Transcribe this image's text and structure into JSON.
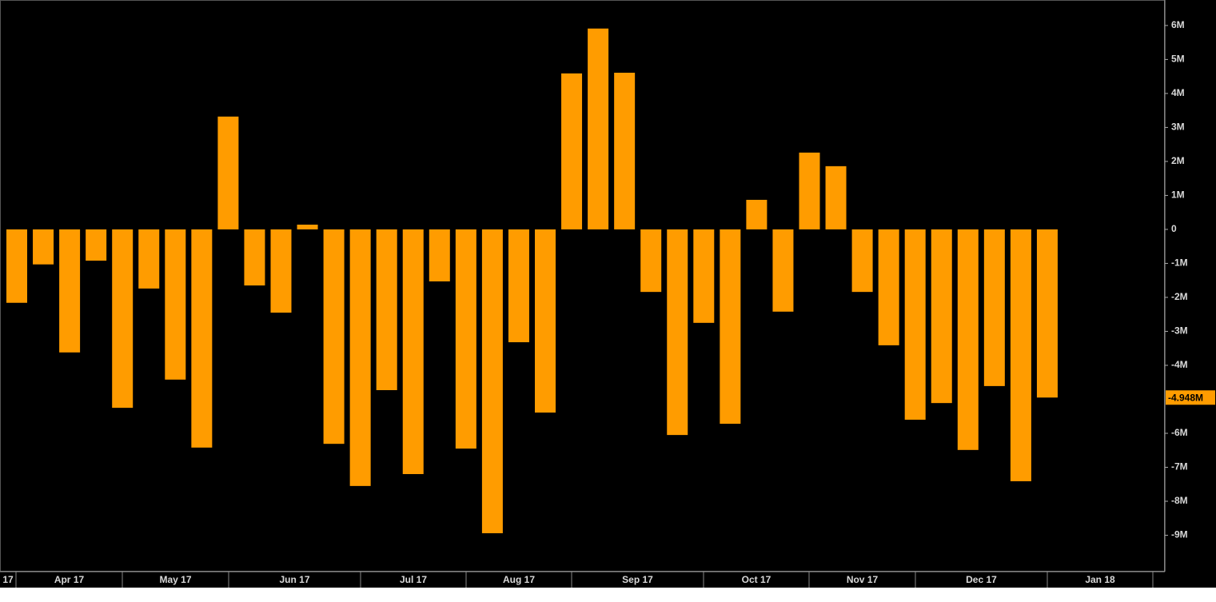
{
  "chart_data": {
    "type": "bar",
    "categories": [
      null,
      null,
      null,
      null,
      null,
      null,
      null,
      null,
      null,
      null,
      null,
      null,
      null,
      null,
      null,
      null,
      null,
      null,
      null,
      null,
      null,
      null,
      null,
      null,
      null,
      null,
      null,
      null,
      null,
      null,
      null,
      null,
      null,
      null,
      null,
      null,
      null,
      null,
      null,
      null
    ],
    "values": [
      -2.16,
      -1.03,
      -3.62,
      -0.92,
      -5.25,
      -1.74,
      -4.42,
      -6.42,
      3.32,
      -1.65,
      -2.45,
      0.14,
      -6.31,
      -7.55,
      -4.73,
      -7.2,
      -1.53,
      -6.45,
      -8.94,
      -3.32,
      -5.39,
      4.59,
      5.91,
      4.61,
      -1.84,
      -6.05,
      -2.75,
      -5.72,
      0.87,
      -2.42,
      2.26,
      1.86,
      -1.84,
      -3.41,
      -5.6,
      -5.11,
      -6.49,
      -4.61,
      -7.41,
      -4.948
    ],
    "last_value_label": "-4.948M",
    "color": "#ff9c00",
    "ylim": [
      -10.07,
      6.75
    ],
    "yticks": [
      {
        "value": 6,
        "label": "6M"
      },
      {
        "value": 5,
        "label": "5M"
      },
      {
        "value": 4,
        "label": "4M"
      },
      {
        "value": 3,
        "label": "3M"
      },
      {
        "value": 2,
        "label": "2M"
      },
      {
        "value": 1,
        "label": "1M"
      },
      0,
      {
        "value": -1,
        "label": "-1M"
      },
      {
        "value": -2,
        "label": "-2M"
      },
      {
        "value": -3,
        "label": "-3M"
      },
      {
        "value": -4,
        "label": "-4M"
      },
      {
        "value": -6,
        "label": "-6M"
      },
      {
        "value": -7,
        "label": "-7M"
      },
      {
        "value": -8,
        "label": "-8M"
      },
      {
        "value": -9,
        "label": "-9M"
      }
    ],
    "x_labels": [
      "17",
      "Apr 17",
      "May 17",
      "Jun 17",
      "Jul 17",
      "Aug 17",
      "Sep 17",
      "Oct 17",
      "Nov 17",
      "Dec 17",
      "Jan 18"
    ]
  }
}
